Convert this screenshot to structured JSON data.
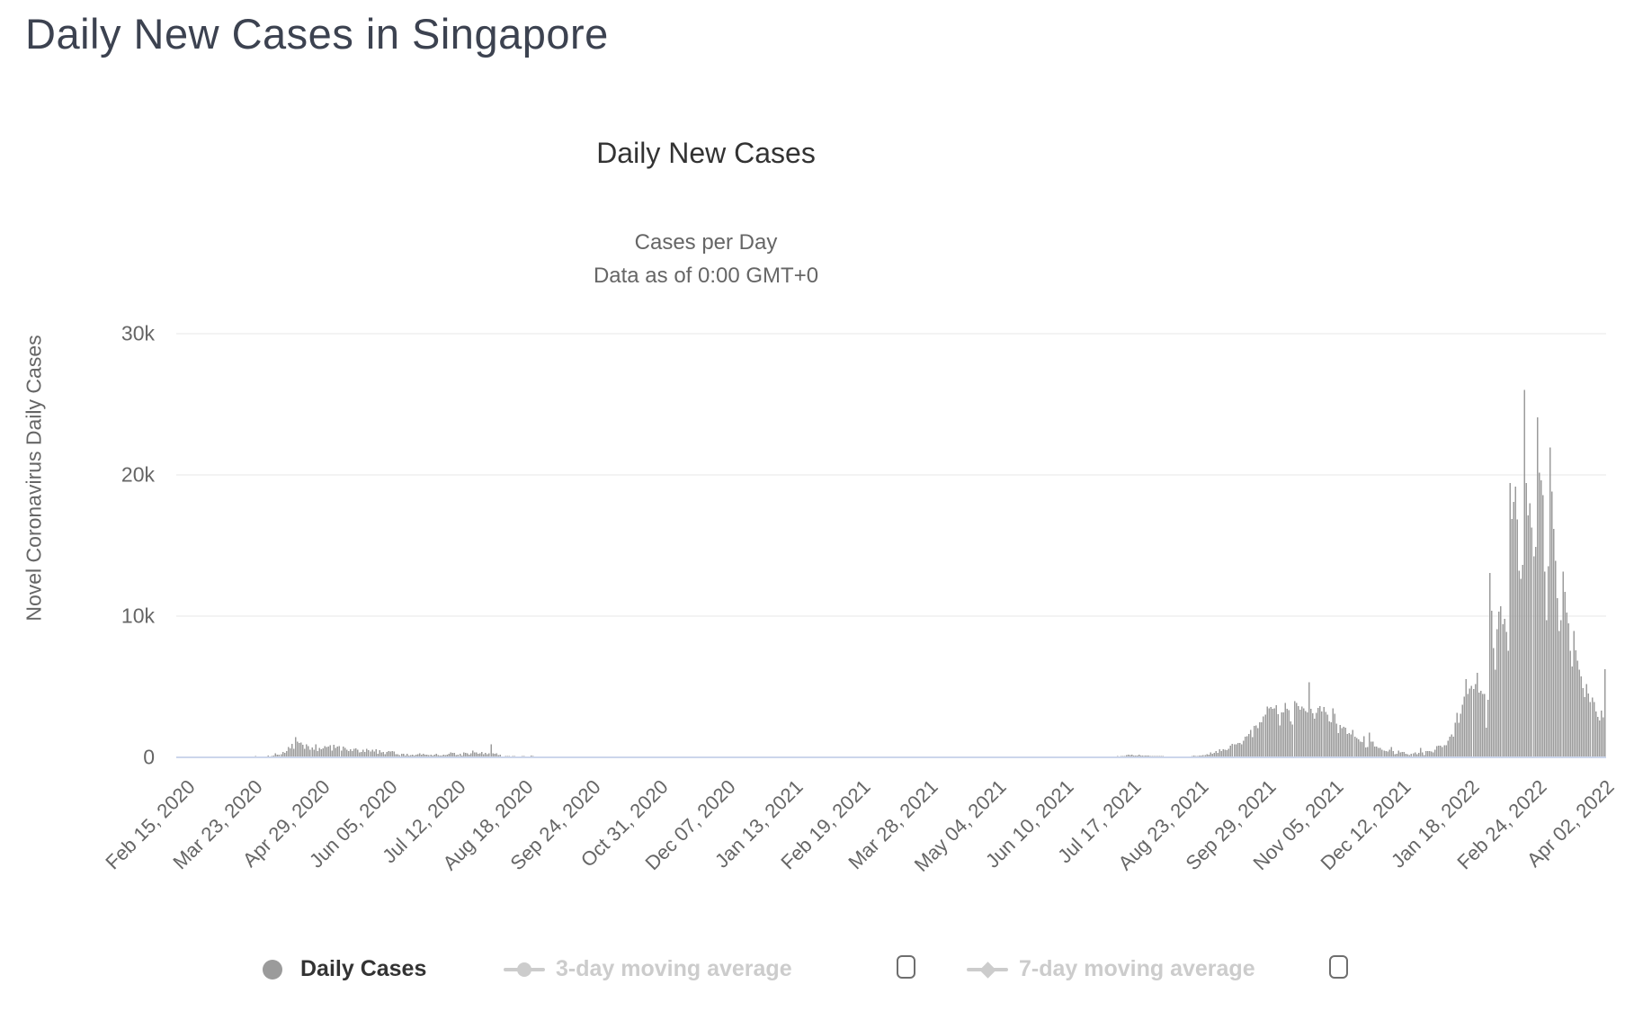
{
  "page": {
    "title": "Daily New Cases in Singapore"
  },
  "chart": {
    "title": "Daily New Cases",
    "subtitle_line1": "Cases per Day",
    "subtitle_line2": "Data as of 0:00 GMT+0",
    "y_axis_title": "Novel Coronavirus Daily Cases",
    "legend": {
      "daily_label": "Daily Cases",
      "ma3_label": "3-day moving average",
      "ma7_label": "7-day moving average"
    }
  },
  "colors": {
    "bars": "#9b9b9b",
    "axis_line": "#ccd6eb",
    "gridline": "#e7e7e7",
    "disabled_legend": "#cccccc",
    "tick_text": "#666666"
  },
  "chart_data": {
    "type": "bar",
    "title": "Daily New Cases",
    "subtitle": "Cases per Day — Data as of 0:00 GMT+0",
    "ylabel": "Novel Coronavirus Daily Cases",
    "ylim": [
      0,
      30000
    ],
    "y_tick_values": [
      0,
      10000,
      20000,
      30000
    ],
    "y_tick_labels": [
      "0",
      "10k",
      "20k",
      "30k"
    ],
    "grid": "horizontal",
    "legend_position": "bottom",
    "x_start_date": "Feb 15, 2020",
    "x_end_date": "Apr 07, 2022",
    "x_tick_interval_days": 37,
    "x_tick_labels": [
      "Feb 15, 2020",
      "Mar 23, 2020",
      "Apr 29, 2020",
      "Jun 05, 2020",
      "Jul 12, 2020",
      "Aug 18, 2020",
      "Sep 24, 2020",
      "Oct 31, 2020",
      "Dec 07, 2020",
      "Jan 13, 2021",
      "Feb 19, 2021",
      "Mar 28, 2021",
      "May 04, 2021",
      "Jun 10, 2021",
      "Jul 17, 2021",
      "Aug 23, 2021",
      "Sep 29, 2021",
      "Nov 05, 2021",
      "Dec 12, 2021",
      "Jan 18, 2022",
      "Feb 24, 2022",
      "Apr 02, 2022"
    ],
    "series": [
      {
        "name": "Daily Cases",
        "type": "column",
        "visible": true,
        "color": "#9b9b9b",
        "values": [
          9,
          2,
          3,
          1,
          4,
          5,
          5,
          3,
          5,
          2,
          2,
          1,
          4,
          9,
          9,
          4,
          7,
          12,
          10,
          13,
          13,
          12,
          6,
          12,
          17,
          13,
          9,
          14,
          5,
          9,
          17,
          23,
          47,
          32,
          40,
          47,
          23,
          54,
          49,
          52,
          73,
          70,
          75,
          106,
          47,
          74,
          49,
          74,
          65,
          75,
          120,
          66,
          106,
          142,
          287,
          198,
          191,
          233,
          386,
          334,
          447,
          728,
          623,
          942,
          596,
          1426,
          1111,
          1016,
          1037,
          897,
          618,
          931,
          799,
          528,
          690,
          528,
          932,
          447,
          657,
          573,
          632,
          788,
          741,
          768,
          876,
          486,
          884,
          675,
          752,
          793,
          465,
          752,
          682,
          533,
          451,
          570,
          448,
          614,
          642,
          548,
          344,
          383,
          533,
          373,
          611,
          506,
          408,
          544,
          408,
          569,
          261,
          506,
          344,
          383,
          218,
          386,
          451,
          422,
          447,
          407,
          218,
          214,
          151,
          247,
          257,
          142,
          262,
          119,
          144,
          191,
          113,
          191,
          219,
          291,
          202,
          246,
          182,
          187,
          169,
          188,
          136,
          185,
          262,
          157,
          125,
          140,
          191,
          170,
          178,
          249,
          347,
          322,
          327,
          170,
          202,
          257,
          124,
          354,
          316,
          277,
          191,
          281,
          469,
          359,
          365,
          245,
          278,
          396,
          217,
          313,
          226,
          295,
          908,
          301,
          242,
          278,
          175,
          188,
          61,
          42,
          102,
          83,
          86,
          54,
          91,
          100,
          68,
          42,
          50,
          100,
          87,
          41,
          31,
          54,
          113,
          94,
          40,
          54,
          41,
          41,
          40,
          23,
          30,
          9,
          11,
          20,
          21,
          18,
          26,
          13,
          12,
          9,
          34,
          18,
          28,
          18,
          15,
          31,
          20,
          14,
          18,
          12,
          15,
          12,
          25,
          27,
          15,
          10,
          9,
          12,
          10,
          9,
          12,
          4,
          8,
          10,
          6,
          11,
          7,
          8,
          4,
          6,
          7,
          3,
          4,
          11,
          8,
          13,
          4,
          8,
          12,
          13,
          14,
          5,
          3,
          7,
          8,
          6,
          7,
          9,
          4,
          9,
          6,
          5,
          7,
          4,
          8,
          7,
          9,
          7,
          10,
          4,
          12,
          3,
          4,
          5,
          9,
          4,
          9,
          12,
          5,
          4,
          5,
          6,
          10,
          5,
          8,
          12,
          9,
          10,
          13,
          12,
          10,
          13,
          12,
          13,
          9,
          15,
          9,
          12,
          15,
          13,
          12,
          30,
          19,
          13,
          22,
          21,
          29,
          18,
          22,
          30,
          25,
          22,
          19,
          28,
          20,
          35,
          22,
          31,
          30,
          35,
          33,
          24,
          29,
          28,
          28,
          33,
          35,
          42,
          40,
          26,
          38,
          32,
          29,
          38,
          30,
          24,
          30,
          28,
          17,
          38,
          26,
          19,
          29,
          23,
          25,
          35,
          31,
          25,
          29,
          34,
          29,
          19,
          21,
          24,
          19,
          16,
          13,
          11,
          18,
          22,
          15,
          18,
          14,
          10,
          16,
          15,
          14,
          12,
          21,
          22,
          14,
          10,
          12,
          13,
          11,
          14,
          14,
          16,
          13,
          9,
          14,
          19,
          12,
          13,
          13,
          17,
          12,
          12,
          14,
          9,
          18,
          12,
          21,
          11,
          16,
          13,
          17,
          20,
          18,
          12,
          14,
          21,
          22,
          15,
          18,
          19,
          18,
          13,
          26,
          26,
          20,
          23,
          20,
          17,
          25,
          29,
          24,
          32,
          25,
          20,
          34,
          21,
          30,
          39,
          34,
          39,
          33,
          20,
          39,
          25,
          34,
          24,
          37,
          41,
          33,
          35,
          33,
          36,
          24,
          33,
          25,
          17,
          27,
          24,
          20,
          31,
          30,
          29,
          28,
          29,
          34,
          26,
          38,
          52,
          49,
          38,
          41,
          36,
          27,
          41,
          35,
          28,
          24,
          33,
          31,
          27,
          28,
          26,
          22,
          18,
          18,
          14,
          27,
          20,
          16,
          20,
          13,
          18,
          14,
          14,
          23,
          18,
          16,
          21,
          25,
          23,
          20,
          19,
          16,
          23,
          16,
          15,
          23,
          25,
          15,
          14,
          14,
          10,
          6,
          14,
          24,
          15,
          12,
          12,
          16,
          16,
          11,
          25,
          20,
          13,
          31,
          60,
          56,
          92,
          63,
          88,
          88,
          92,
          172,
          195,
          162,
          179,
          130,
          127,
          135,
          182,
          139,
          133,
          136,
          131,
          118,
          98,
          103,
          95,
          99,
          94,
          81,
          84,
          98,
          63,
          54,
          72,
          59,
          61,
          50,
          53,
          54,
          39,
          32,
          37,
          40,
          32,
          44,
          59,
          96,
          116,
          89,
          80,
          113,
          133,
          155,
          161,
          216,
          180,
          347,
          260,
          331,
          457,
          328,
          568,
          450,
          573,
          555,
          520,
          607,
          837,
          949,
          910,
          935,
          1009,
          1012,
          935,
          1178,
          1457,
          1504,
          1650,
          1939,
          1443,
          2236,
          2268,
          2057,
          2478,
          2475,
          2909,
          3013,
          3590,
          3486,
          3577,
          3439,
          3483,
          3703,
          3058,
          2263,
          3174,
          3190,
          3862,
          3445,
          3348,
          2553,
          2331,
          3994,
          3862,
          3637,
          3383,
          3598,
          3474,
          3277,
          3174,
          5324,
          3432,
          3112,
          2725,
          3163,
          3496,
          3635,
          3235,
          3581,
          3224,
          3035,
          2553,
          2470,
          3481,
          3099,
          2396,
          1723,
          2304,
          2069,
          2162,
          2088,
          1670,
          1734,
          1609,
          1931,
          1461,
          1370,
          1275,
          1103,
          1092,
          1491,
          700,
          747,
          1761,
          1110,
          1101,
          758,
          765,
          685,
          662,
          547,
          474,
          454,
          426,
          551,
          743,
          455,
          237,
          266,
          475,
          345,
          386,
          390,
          264,
          209,
          170,
          261,
          280,
          365,
          209,
          332,
          662,
          365,
          170,
          455,
          456,
          456,
          429,
          365,
          529,
          805,
          813,
          832,
          735,
          845,
          846,
          1165,
          1472,
          1615,
          1472,
          2447,
          3155,
          2463,
          3100,
          3725,
          4297,
          5554,
          4481,
          4867,
          5054,
          4832,
          5207,
          5996,
          4600,
          4700,
          4498,
          4481,
          2110,
          4087,
          13046,
          10390,
          7752,
          6215,
          9082,
          10314,
          10686,
          9420,
          9814,
          8875,
          7539,
          19420,
          16883,
          18094,
          19179,
          16857,
          13208,
          12632,
          13623,
          26032,
          19420,
          17147,
          18001,
          16274,
          14228,
          14900,
          24080,
          20173,
          19608,
          18561,
          13158,
          9701,
          13544,
          21930,
          18816,
          16165,
          13929,
          11278,
          8940,
          9701,
          13166,
          11713,
          10244,
          9483,
          7538,
          6434,
          8940,
          7568,
          6833,
          6210,
          5741,
          4914,
          4270,
          5200,
          4521,
          3921,
          4224,
          3904,
          3251,
          2875,
          2598,
          3320,
          2832,
          6258
        ]
      },
      {
        "name": "3-day moving average",
        "type": "line",
        "visible": false,
        "color": "#cccccc"
      },
      {
        "name": "7-day moving average",
        "type": "line",
        "visible": false,
        "color": "#cccccc"
      }
    ]
  }
}
